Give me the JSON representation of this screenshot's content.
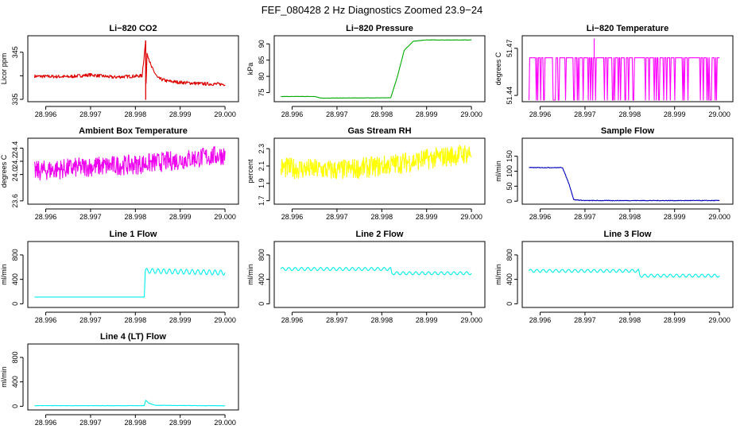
{
  "figure_title": "FEF_080428  2 Hz Diagnostics Zoomed 23.9−24",
  "chart_data": [
    {
      "type": "line",
      "title": "Li−820 CO2",
      "ylabel": "Licor ppm",
      "color": "#dd0000",
      "xlim": [
        28.9956,
        29.0003
      ],
      "xticks": [
        28.996,
        28.997,
        28.998,
        28.999,
        29.0
      ],
      "xticklabels": [
        "28.996",
        "28.997",
        "28.998",
        "28.999",
        "29.000"
      ],
      "ylim": [
        334.5,
        348.5
      ],
      "yticks": [
        335,
        340,
        345
      ],
      "yticklabels": [
        "335",
        "",
        "345"
      ],
      "series": [
        {
          "name": "CO2",
          "points": [
            [
              28.99575,
              339.9
            ],
            [
              28.9965,
              339.8
            ],
            [
              28.997,
              340.2
            ],
            [
              28.9975,
              339.7
            ],
            [
              28.99815,
              340.0
            ],
            [
              28.99823,
              347.5
            ],
            [
              28.99823,
              334.9
            ],
            [
              28.99826,
              345.0
            ],
            [
              28.99835,
              342.0
            ],
            [
              28.9985,
              339.5
            ],
            [
              28.9987,
              338.9
            ],
            [
              28.999,
              338.6
            ],
            [
              28.9995,
              338.3
            ],
            [
              29.0,
              338.2
            ]
          ],
          "noise": 0.35
        }
      ]
    },
    {
      "type": "line",
      "title": "Li−820 Pressure",
      "ylabel": "kPa",
      "color": "#00aa00",
      "xlim": [
        28.9956,
        29.0003
      ],
      "xticks": [
        28.996,
        28.997,
        28.998,
        28.999,
        29.0
      ],
      "xticklabels": [
        "28.996",
        "28.997",
        "28.998",
        "28.999",
        "29.000"
      ],
      "ylim": [
        72.2,
        92.5
      ],
      "yticks": [
        75,
        80,
        85,
        90
      ],
      "yticklabels": [
        "75",
        "80",
        "85",
        "90"
      ],
      "series": [
        {
          "name": "Pressure",
          "points": [
            [
              28.99575,
              73.8
            ],
            [
              28.9965,
              73.8
            ],
            [
              28.99665,
              73.3
            ],
            [
              28.9982,
              73.4
            ],
            [
              28.99835,
              80.0
            ],
            [
              28.9985,
              88.0
            ],
            [
              28.9987,
              90.8
            ],
            [
              28.999,
              91.2
            ],
            [
              29.0,
              91.2
            ]
          ],
          "noise": 0.05
        }
      ]
    },
    {
      "type": "line",
      "title": "Li−820 Temperature",
      "ylabel": "degrees C",
      "color": "#ff00ff",
      "xlim": [
        28.9956,
        29.0003
      ],
      "xticks": [
        28.996,
        28.997,
        28.998,
        28.999,
        29.0
      ],
      "xticklabels": [
        "28.996",
        "28.997",
        "28.998",
        "28.999",
        "29.000"
      ],
      "ylim": [
        51.436,
        51.478
      ],
      "yticks": [
        51.44,
        51.47
      ],
      "yticklabels": [
        "51.44",
        "51.47"
      ],
      "series": [
        {
          "name": "Temperature",
          "points": [
            [
              28.99575,
              51.464
            ],
            [
              29.0,
              51.464
            ]
          ],
          "drops": {
            "low": 51.437,
            "high": 51.464,
            "count": 48,
            "spike": [
              28.9972,
              51.476
            ]
          }
        }
      ]
    },
    {
      "type": "line",
      "title": "Ambient Box Temperature",
      "ylabel": "degrees C",
      "color": "#ee00ee",
      "xlim": [
        28.9956,
        29.0003
      ],
      "xticks": [
        28.996,
        28.997,
        28.998,
        28.999,
        29.0
      ],
      "xticklabels": [
        "28.996",
        "28.997",
        "28.998",
        "28.999",
        "29.000"
      ],
      "ylim": [
        23.55,
        24.55
      ],
      "yticks": [
        23.6,
        24.0,
        24.2,
        24.4
      ],
      "yticklabels": [
        "23.6",
        "24.0",
        "24.2",
        "24.4"
      ],
      "series": [
        {
          "name": "Ambient",
          "points": [
            [
              28.99575,
              24.05
            ],
            [
              28.997,
              24.12
            ],
            [
              28.998,
              24.15
            ],
            [
              28.999,
              24.22
            ],
            [
              29.0,
              24.3
            ]
          ],
          "noise": 0.15
        }
      ]
    },
    {
      "type": "line",
      "title": "Gas Stream RH",
      "ylabel": "percent",
      "color": "#ffff00",
      "xlim": [
        28.9956,
        29.0003
      ],
      "xticks": [
        28.996,
        28.997,
        28.998,
        28.999,
        29.0
      ],
      "xticklabels": [
        "28.996",
        "28.997",
        "28.998",
        "28.999",
        "29.000"
      ],
      "ylim": [
        1.66,
        2.42
      ],
      "yticks": [
        1.7,
        1.9,
        2.1,
        2.3
      ],
      "yticklabels": [
        "1.7",
        "1.9",
        "2.1",
        "2.3"
      ],
      "series": [
        {
          "name": "RH",
          "points": [
            [
              28.99575,
              2.08
            ],
            [
              28.997,
              2.05
            ],
            [
              28.998,
              2.1
            ],
            [
              28.999,
              2.18
            ],
            [
              29.0,
              2.25
            ]
          ],
          "noise": 0.12
        }
      ]
    },
    {
      "type": "line",
      "title": "Sample Flow",
      "ylabel": "ml/min",
      "color": "#0000bb",
      "xlim": [
        28.9956,
        29.0003
      ],
      "xticks": [
        28.996,
        28.997,
        28.998,
        28.999,
        29.0
      ],
      "xticklabels": [
        "28.996",
        "28.997",
        "28.998",
        "28.999",
        "29.000"
      ],
      "ylim": [
        -10,
        210
      ],
      "yticks": [
        0,
        50,
        100,
        150
      ],
      "yticklabels": [
        "0",
        "50",
        "100",
        "150"
      ],
      "series": [
        {
          "name": "Sample",
          "points": [
            [
              28.99575,
              112
            ],
            [
              28.9965,
              112
            ],
            [
              28.99665,
              55
            ],
            [
              28.99675,
              5
            ],
            [
              28.997,
              2
            ],
            [
              29.0,
              2
            ]
          ],
          "noise": 1.0
        }
      ]
    },
    {
      "type": "line",
      "title": "Line 1 Flow",
      "ylabel": "ml/min",
      "color": "#00eeee",
      "xlim": [
        28.9956,
        29.0003
      ],
      "xticks": [
        28.996,
        28.997,
        28.998,
        28.999,
        29.0
      ],
      "xticklabels": [
        "28.996",
        "28.997",
        "28.998",
        "28.999",
        "29.000"
      ],
      "ylim": [
        -60,
        1020
      ],
      "yticks": [
        0,
        400,
        800
      ],
      "yticklabels": [
        "0",
        "400",
        "800"
      ],
      "series": [
        {
          "name": "Line 1",
          "points": [
            [
              28.99575,
              110
            ],
            [
              28.9982,
              110
            ],
            [
              28.99822,
              540
            ],
            [
              29.0,
              510
            ]
          ],
          "wave": {
            "start": 28.99822,
            "amplitude": 40,
            "cycles": 14
          }
        }
      ]
    },
    {
      "type": "line",
      "title": "Line 2 Flow",
      "ylabel": "ml/min",
      "color": "#00eeee",
      "xlim": [
        28.9956,
        29.0003
      ],
      "xticks": [
        28.996,
        28.997,
        28.998,
        28.999,
        29.0
      ],
      "xticklabels": [
        "28.996",
        "28.997",
        "28.998",
        "28.999",
        "29.000"
      ],
      "ylim": [
        -60,
        1020
      ],
      "yticks": [
        0,
        400,
        800
      ],
      "yticklabels": [
        "0",
        "400",
        "800"
      ],
      "series": [
        {
          "name": "Line 2",
          "points": [
            [
              28.99575,
              570
            ],
            [
              28.9982,
              570
            ],
            [
              28.99822,
              500
            ],
            [
              29.0,
              500
            ]
          ],
          "wave": {
            "start": 28.99575,
            "amplitude": 25,
            "cycles": 30
          }
        }
      ]
    },
    {
      "type": "line",
      "title": "Line 3 Flow",
      "ylabel": "ml/min",
      "color": "#00eeee",
      "xlim": [
        28.9956,
        29.0003
      ],
      "xticks": [
        28.996,
        28.997,
        28.998,
        28.999,
        29.0
      ],
      "xticklabels": [
        "28.996",
        "28.997",
        "28.998",
        "28.999",
        "29.000"
      ],
      "ylim": [
        -60,
        1020
      ],
      "yticks": [
        0,
        400,
        800
      ],
      "yticklabels": [
        "0",
        "400",
        "800"
      ],
      "series": [
        {
          "name": "Line 3",
          "points": [
            [
              28.99575,
              540
            ],
            [
              28.9982,
              540
            ],
            [
              28.99822,
              460
            ],
            [
              29.0,
              460
            ]
          ],
          "wave": {
            "start": 28.99575,
            "amplitude": 25,
            "cycles": 30
          }
        }
      ]
    },
    {
      "type": "line",
      "title": "Line 4 (LT) Flow",
      "ylabel": "ml/min",
      "color": "#00eeee",
      "xlim": [
        28.9956,
        29.0003
      ],
      "xticks": [
        28.996,
        28.997,
        28.998,
        28.999,
        29.0
      ],
      "xticklabels": [
        "28.996",
        "28.997",
        "28.998",
        "28.999",
        "29.000"
      ],
      "ylim": [
        -60,
        1020
      ],
      "yticks": [
        0,
        400,
        800
      ],
      "yticklabels": [
        "0",
        "400",
        "800"
      ],
      "series": [
        {
          "name": "Line 4",
          "points": [
            [
              28.99575,
              10
            ],
            [
              28.9982,
              10
            ],
            [
              28.99823,
              100
            ],
            [
              28.9983,
              50
            ],
            [
              28.99845,
              15
            ],
            [
              29.0,
              8
            ]
          ],
          "noise": 3
        }
      ]
    }
  ]
}
